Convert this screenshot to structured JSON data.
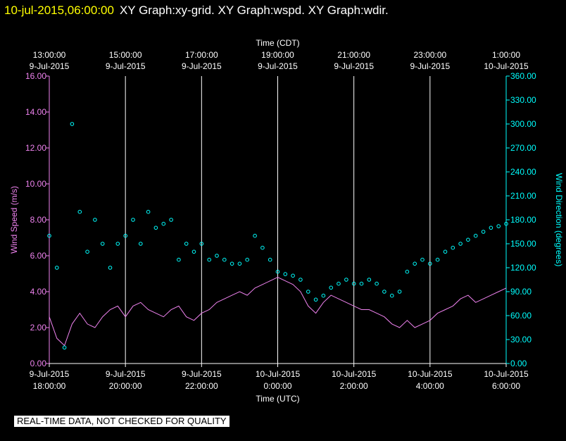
{
  "header": {
    "date_time": "10-jul-2015,06:00:00",
    "titles": "XY Graph:xy-grid.  XY Graph:wspd.  XY Graph:wdir."
  },
  "disclaimer": "REAL-TIME DATA, NOT CHECKED FOR QUALITY",
  "colors": {
    "background": "#000000",
    "wind_speed": "#ee82ee",
    "wind_direction": "#00ffff",
    "grid": "#ffffff",
    "header_date": "#ffff00"
  },
  "chart_data": {
    "type": "line",
    "top_axis": {
      "label": "Time (CDT)",
      "ticks": [
        {
          "t": 0,
          "time": "13:00:00",
          "date": "9-Jul-2015"
        },
        {
          "t": 2,
          "time": "15:00:00",
          "date": "9-Jul-2015"
        },
        {
          "t": 4,
          "time": "17:00:00",
          "date": "9-Jul-2015"
        },
        {
          "t": 6,
          "time": "19:00:00",
          "date": "9-Jul-2015"
        },
        {
          "t": 8,
          "time": "21:00:00",
          "date": "9-Jul-2015"
        },
        {
          "t": 10,
          "time": "23:00:00",
          "date": "9-Jul-2015"
        },
        {
          "t": 12,
          "time": "1:00:00",
          "date": "10-Jul-2015"
        }
      ]
    },
    "bottom_axis": {
      "label": "Time (UTC)",
      "ticks": [
        {
          "t": 0,
          "date": "9-Jul-2015",
          "time": "18:00:00"
        },
        {
          "t": 2,
          "date": "9-Jul-2015",
          "time": "20:00:00"
        },
        {
          "t": 4,
          "date": "9-Jul-2015",
          "time": "22:00:00"
        },
        {
          "t": 6,
          "date": "10-Jul-2015",
          "time": "0:00:00"
        },
        {
          "t": 8,
          "date": "10-Jul-2015",
          "time": "2:00:00"
        },
        {
          "t": 10,
          "date": "10-Jul-2015",
          "time": "4:00:00"
        },
        {
          "t": 12,
          "date": "10-Jul-2015",
          "time": "6:00:00"
        }
      ]
    },
    "xlim": [
      0,
      12
    ],
    "left_axis": {
      "label": "Wind Speed (m/s)",
      "ylim": [
        0,
        16
      ],
      "ticks": [
        "0.00",
        "2.00",
        "4.00",
        "6.00",
        "8.00",
        "10.00",
        "12.00",
        "14.00",
        "16.00"
      ]
    },
    "right_axis": {
      "label": "Wind Direction (degrees)",
      "ylim": [
        0,
        360
      ],
      "ticks": [
        "0.00",
        "30.00",
        "60.00",
        "90.00",
        "120.00",
        "150.00",
        "180.00",
        "210.00",
        "240.00",
        "270.00",
        "300.00",
        "330.00",
        "360.00"
      ]
    },
    "series": [
      {
        "name": "Wind Speed (m/s)",
        "style": "line",
        "axis": "left",
        "t": [
          0.0,
          0.2,
          0.4,
          0.6,
          0.8,
          1.0,
          1.2,
          1.4,
          1.6,
          1.8,
          2.0,
          2.2,
          2.4,
          2.6,
          2.8,
          3.0,
          3.2,
          3.4,
          3.6,
          3.8,
          4.0,
          4.2,
          4.4,
          4.6,
          4.8,
          5.0,
          5.2,
          5.4,
          5.6,
          5.8,
          6.0,
          6.2,
          6.4,
          6.6,
          6.8,
          7.0,
          7.2,
          7.4,
          7.6,
          7.8,
          8.0,
          8.2,
          8.4,
          8.6,
          8.8,
          9.0,
          9.2,
          9.4,
          9.6,
          9.8,
          10.0,
          10.2,
          10.4,
          10.6,
          10.8,
          11.0,
          11.2,
          11.4,
          11.6,
          11.8,
          12.0
        ],
        "values": [
          2.6,
          1.4,
          1.0,
          2.2,
          2.8,
          2.2,
          2.0,
          2.6,
          3.0,
          3.2,
          2.6,
          3.2,
          3.4,
          3.0,
          2.8,
          2.6,
          3.0,
          3.2,
          2.6,
          2.4,
          2.8,
          3.0,
          3.4,
          3.6,
          3.8,
          4.0,
          3.8,
          4.2,
          4.4,
          4.6,
          4.8,
          4.6,
          4.4,
          4.0,
          3.2,
          2.8,
          3.4,
          3.8,
          3.6,
          3.4,
          3.2,
          3.0,
          3.0,
          2.8,
          2.6,
          2.2,
          2.0,
          2.4,
          2.0,
          2.2,
          2.4,
          2.8,
          3.0,
          3.2,
          3.6,
          3.8,
          3.4,
          3.6,
          3.8,
          4.0,
          4.2
        ]
      },
      {
        "name": "Wind Direction (degrees)",
        "style": "scatter",
        "axis": "right",
        "t": [
          0.0,
          0.2,
          0.4,
          0.6,
          0.8,
          1.0,
          1.2,
          1.4,
          1.6,
          1.8,
          2.0,
          2.2,
          2.4,
          2.6,
          2.8,
          3.0,
          3.2,
          3.4,
          3.6,
          3.8,
          4.0,
          4.2,
          4.4,
          4.6,
          4.8,
          5.0,
          5.2,
          5.4,
          5.6,
          5.8,
          6.0,
          6.2,
          6.4,
          6.6,
          6.8,
          7.0,
          7.2,
          7.4,
          7.6,
          7.8,
          8.0,
          8.2,
          8.4,
          8.6,
          8.8,
          9.0,
          9.2,
          9.4,
          9.6,
          9.8,
          10.0,
          10.2,
          10.4,
          10.6,
          10.8,
          11.0,
          11.2,
          11.4,
          11.6,
          11.8,
          12.0
        ],
        "values": [
          160,
          120,
          20,
          300,
          190,
          140,
          180,
          150,
          120,
          150,
          160,
          180,
          150,
          190,
          170,
          175,
          180,
          130,
          150,
          140,
          150,
          130,
          135,
          130,
          125,
          125,
          130,
          160,
          145,
          130,
          115,
          112,
          110,
          105,
          90,
          80,
          85,
          95,
          100,
          105,
          100,
          100,
          105,
          100,
          90,
          85,
          90,
          115,
          125,
          130,
          125,
          130,
          140,
          145,
          150,
          155,
          160,
          165,
          170,
          172,
          175
        ]
      }
    ]
  }
}
